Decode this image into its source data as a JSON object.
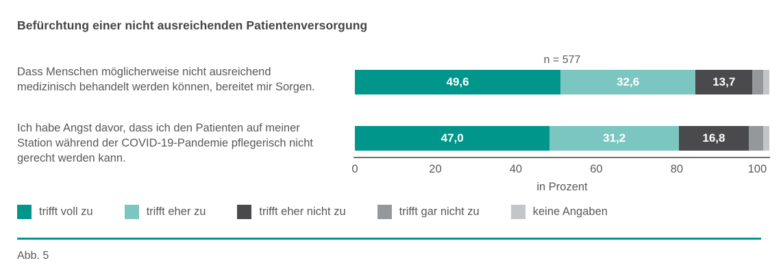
{
  "header": {
    "title": "Befürchtung einer nicht ausreichenden Patientenversorgung"
  },
  "chart_data": {
    "type": "bar",
    "orientation": "horizontal",
    "stacked": true,
    "n_label": "n = 577",
    "categories": [
      "Dass Menschen möglicherweise nicht ausreichend medizinisch behandelt werden können, bereitet mir Sorgen.",
      "Ich habe Angst davor, dass ich den Patienten auf meiner Station während der COVID-19-Pandemie pflegerisch nicht gerecht werden kann."
    ],
    "series": [
      {
        "name": "trifft voll zu",
        "color": "#00968B",
        "values": [
          49.6,
          47.0
        ]
      },
      {
        "name": "trifft eher zu",
        "color": "#7BC6C1",
        "values": [
          32.6,
          31.2
        ]
      },
      {
        "name": "trifft eher nicht zu",
        "color": "#4A4A4D",
        "values": [
          13.7,
          16.8
        ]
      },
      {
        "name": "trifft gar nicht zu",
        "color": "#95989B",
        "values": [
          2.6,
          3.5
        ]
      },
      {
        "name": "keine Angaben",
        "color": "#C3C6C8",
        "values": [
          1.5,
          1.5
        ]
      }
    ],
    "xlabel": "in Prozent",
    "xticks": [
      0,
      20,
      40,
      60,
      80,
      100
    ],
    "xlim": [
      0,
      103
    ],
    "label_threshold": 5,
    "legend_position": "bottom",
    "grid": false
  },
  "footer": {
    "caption": "Abb. 5"
  },
  "theme": {
    "accent": "#00968B",
    "text_color": "#58585B"
  }
}
